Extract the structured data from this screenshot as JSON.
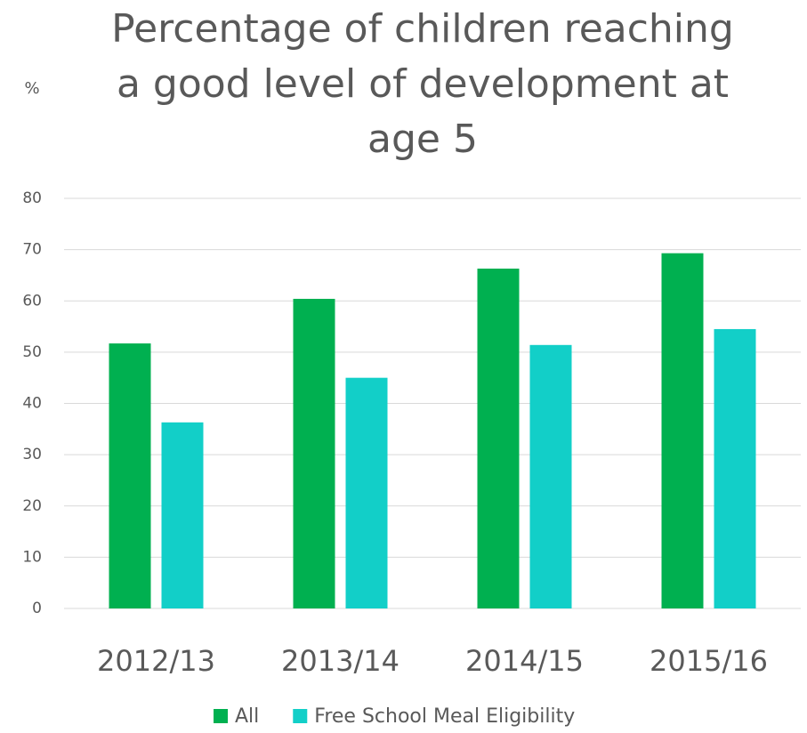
{
  "chart_data": {
    "type": "bar",
    "title": "Percentage of children reaching a good level of development at age 5",
    "y_label": "%",
    "categories": [
      "2012/13",
      "2013/14",
      "2014/15",
      "2015/16"
    ],
    "series": [
      {
        "name": "All",
        "color": "#00b050",
        "values": [
          51.7,
          60.4,
          66.3,
          69.3
        ]
      },
      {
        "name": "Free School Meal Eligibility",
        "color": "#12cfc8",
        "values": [
          36.3,
          45.0,
          51.4,
          54.5
        ]
      }
    ],
    "ylim": [
      0,
      80
    ],
    "yticks": [
      0,
      10,
      20,
      30,
      40,
      50,
      60,
      70,
      80
    ],
    "grid": true,
    "legend": "bottom"
  }
}
